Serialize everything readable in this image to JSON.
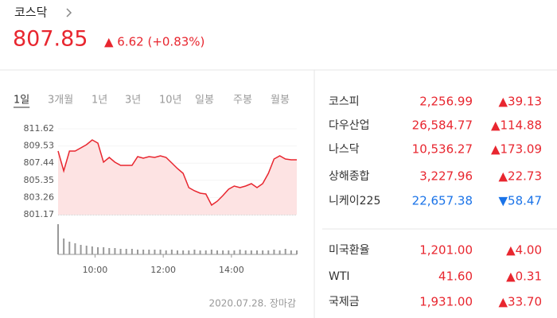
{
  "header": {
    "title": "코스닥",
    "price": "807.85",
    "change": "▲ 6.62 (+0.83%)"
  },
  "tabs": [
    "1일",
    "3개월",
    "1년",
    "3년",
    "10년",
    "일봉",
    "주봉",
    "월봉"
  ],
  "selected_tab": 0,
  "chart_data": {
    "type": "line",
    "x": [
      535,
      545,
      555,
      565,
      575,
      585,
      595,
      605,
      615,
      625,
      635,
      645,
      655,
      665,
      675,
      685,
      695,
      705,
      715,
      725,
      735,
      745,
      755,
      765,
      775,
      785,
      795,
      805,
      815,
      825,
      835,
      845,
      855,
      865,
      875,
      885,
      895,
      905,
      915,
      925,
      935,
      945,
      955
    ],
    "values": [
      808.91,
      806.49,
      808.91,
      808.91,
      809.3,
      809.68,
      810.27,
      809.88,
      807.56,
      808.14,
      807.56,
      807.17,
      807.17,
      807.17,
      808.23,
      808.04,
      808.23,
      808.14,
      808.33,
      808.14,
      807.46,
      806.78,
      806.2,
      804.46,
      804.07,
      803.78,
      803.69,
      802.33,
      802.81,
      803.49,
      804.27,
      804.65,
      804.46,
      804.65,
      804.94,
      804.46,
      804.94,
      806.2,
      807.94,
      808.33,
      807.94,
      807.85,
      807.85
    ],
    "volume": [
      38,
      20,
      16,
      14,
      12,
      11,
      10,
      9,
      9,
      8,
      8,
      7,
      7,
      7,
      6,
      6,
      6,
      6,
      6,
      5,
      6,
      5,
      5,
      5,
      6,
      5,
      5,
      6,
      5,
      5,
      5,
      5,
      6,
      5,
      5,
      5,
      5,
      5,
      6,
      5,
      7,
      5,
      5
    ],
    "color": "#e8262f",
    "fill": "#fde3e3",
    "volume_color": "#999999",
    "xlim": [
      535,
      955
    ],
    "ylim": [
      801.17,
      811.62
    ],
    "yticks": [
      801.17,
      803.26,
      805.35,
      807.44,
      809.53,
      811.62
    ],
    "xticks": [
      {
        "value": 600,
        "label": "10:00"
      },
      {
        "value": 720,
        "label": "12:00"
      },
      {
        "value": 840,
        "label": "14:00"
      }
    ]
  },
  "timestamp": "2020.07.28. 장마감",
  "indices": [
    [
      {
        "name": "코스피",
        "value": "2,256.99",
        "change": "▲39.13",
        "color": "#e8262f"
      },
      {
        "name": "다우산업",
        "value": "26,584.77",
        "change": "▲114.88",
        "color": "#e8262f"
      },
      {
        "name": "나스닥",
        "value": "10,536.27",
        "change": "▲173.09",
        "color": "#e8262f"
      },
      {
        "name": "상해종합",
        "value": "3,227.96",
        "change": "▲22.73",
        "color": "#e8262f"
      },
      {
        "name": "니케이225",
        "value": "22,657.38",
        "change": "▼58.47",
        "color": "#1a73e8"
      }
    ],
    [
      {
        "name": "미국환율",
        "value": "1,201.00",
        "change": "▲4.00",
        "color": "#e8262f"
      },
      {
        "name": "WTI",
        "value": "41.60",
        "change": "▲0.31",
        "color": "#e8262f"
      },
      {
        "name": "국제금",
        "value": "1,931.00",
        "change": "▲33.70",
        "color": "#e8262f"
      }
    ]
  ]
}
